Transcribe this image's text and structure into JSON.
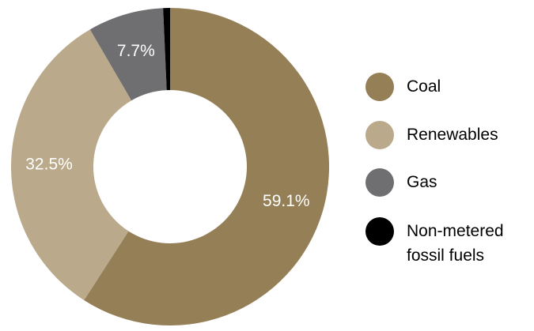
{
  "chart_data": {
    "type": "pie",
    "donut": true,
    "title": "",
    "categories": [
      "Coal",
      "Renewables",
      "Gas",
      "Non-metered fossil fuels"
    ],
    "values": [
      59.1,
      32.5,
      7.7,
      0.7
    ],
    "value_labels": [
      "59.1%",
      "32.5%",
      "7.7%",
      ""
    ],
    "colors": [
      "#947f57",
      "#baa98a",
      "#6f6f72",
      "#000000"
    ],
    "legend_placement": "right",
    "legend": [
      {
        "label": "Coal",
        "color": "#947f57"
      },
      {
        "label": "Renewables",
        "color": "#baa98a"
      },
      {
        "label": "Gas",
        "color": "#6f6f72"
      },
      {
        "label": "Non-metered\nfossil fuels",
        "color": "#000000"
      }
    ]
  }
}
